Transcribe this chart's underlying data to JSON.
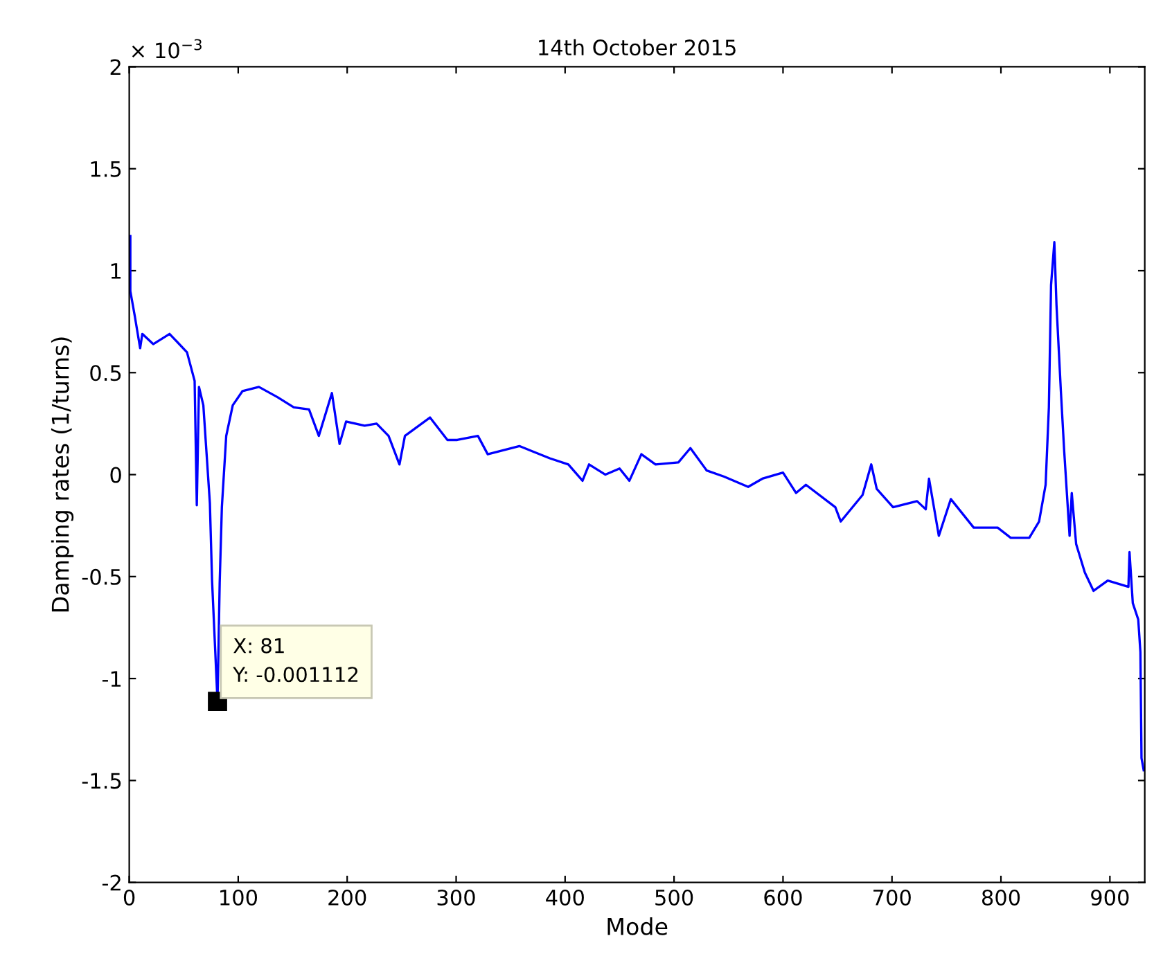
{
  "chart_data": {
    "type": "line",
    "title": "14th October 2015",
    "xlabel": "Mode",
    "ylabel": "Damping rates (1/turns)",
    "annotations": [
      "× 10$^{−3}$",
      {
        "text": "X: 81\nY: -0.001112",
        "x": 81,
        "y": -1.112
      }
    ],
    "x": [
      1,
      1,
      5,
      10,
      12,
      22,
      37,
      53,
      60,
      62,
      64,
      68,
      74,
      76,
      81,
      83,
      85,
      89,
      95,
      104,
      119,
      136,
      151,
      165,
      174,
      186,
      193,
      199,
      216,
      227,
      238,
      248,
      253,
      276,
      292,
      301,
      320,
      329,
      358,
      386,
      403,
      416,
      422,
      437,
      450,
      459,
      470,
      483,
      504,
      515,
      530,
      546,
      568,
      581,
      600,
      612,
      621,
      648,
      653,
      673,
      681,
      686,
      701,
      723,
      731,
      734,
      743,
      754,
      775,
      797,
      809,
      826,
      835,
      841,
      844,
      846,
      849,
      851,
      855,
      858,
      863,
      865,
      869,
      877,
      885,
      898,
      917,
      918,
      921,
      926,
      928,
      929,
      931
    ],
    "series": [
      {
        "color": "#0000ff",
        "values": [
          1.17,
          0.9,
          0.78,
          0.62,
          0.69,
          0.64,
          0.69,
          0.6,
          0.46,
          -0.15,
          0.43,
          0.34,
          -0.14,
          -0.52,
          -1.112,
          -0.53,
          -0.16,
          0.19,
          0.34,
          0.41,
          0.43,
          0.38,
          0.33,
          0.32,
          0.19,
          0.4,
          0.15,
          0.26,
          0.24,
          0.25,
          0.19,
          0.05,
          0.19,
          0.28,
          0.17,
          0.17,
          0.19,
          0.1,
          0.14,
          0.08,
          0.05,
          -0.03,
          0.05,
          0.0,
          0.03,
          -0.03,
          0.1,
          0.05,
          0.06,
          0.13,
          0.02,
          -0.01,
          -0.06,
          -0.02,
          0.01,
          -0.09,
          -0.05,
          -0.16,
          -0.23,
          -0.1,
          0.05,
          -0.07,
          -0.16,
          -0.13,
          -0.17,
          -0.02,
          -0.3,
          -0.12,
          -0.26,
          -0.26,
          -0.31,
          -0.31,
          -0.23,
          -0.05,
          0.33,
          0.93,
          1.14,
          0.83,
          0.41,
          0.12,
          -0.3,
          -0.09,
          -0.34,
          -0.48,
          -0.57,
          -0.52,
          -0.55,
          -0.38,
          -0.63,
          -0.71,
          -0.87,
          -1.39,
          -1.45
        ]
      }
    ],
    "xlim": [
      0,
      932
    ],
    "xticks": [
      0,
      100,
      200,
      300,
      400,
      500,
      600,
      700,
      800,
      900
    ],
    "ylim": [
      -2,
      2
    ],
    "yticks": [
      -2,
      -1.5,
      -1,
      -0.5,
      0,
      0.5,
      1,
      1.5,
      2
    ],
    "grid": false,
    "legend": false,
    "marker": "none",
    "line_style": "solid"
  }
}
